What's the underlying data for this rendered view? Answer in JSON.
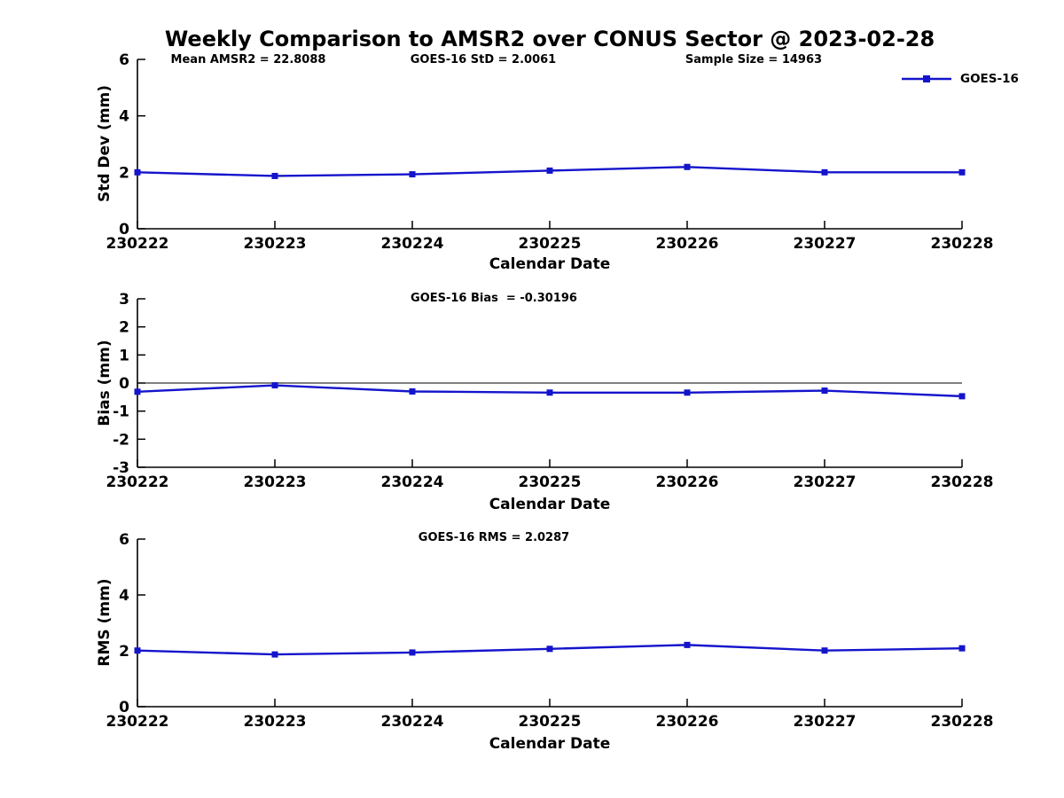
{
  "title": "Weekly Comparison to AMSR2 over CONUS Sector @ 2023-02-28",
  "legend": {
    "label": "GOES-16",
    "color": "#1414cc",
    "marker": "square",
    "position": "top-right"
  },
  "axis_color": "#000000",
  "chart_data": [
    {
      "type": "line",
      "name": "std-dev",
      "ylabel": "Std Dev (mm)",
      "xlabel": "Calendar Date",
      "ylim": [
        0,
        6
      ],
      "yticks": [
        0,
        2,
        4,
        6
      ],
      "grid": false,
      "categories": [
        "230222",
        "230223",
        "230224",
        "230225",
        "230226",
        "230227",
        "230228"
      ],
      "series": [
        {
          "name": "GOES-16",
          "color": "#1414cc",
          "marker": "square",
          "values": [
            2.0,
            1.87,
            1.93,
            2.06,
            2.19,
            2.0,
            2.0
          ]
        }
      ],
      "annotations": [
        "Mean AMSR2 = 22.8088",
        "GOES-16 StD = 2.0061",
        "Sample Size = 14963"
      ]
    },
    {
      "type": "line",
      "name": "bias",
      "ylabel": "Bias (mm)",
      "xlabel": "Calendar Date",
      "ylim": [
        -3,
        3
      ],
      "yticks": [
        -3,
        -2,
        -1,
        0,
        1,
        2,
        3
      ],
      "zero_line": true,
      "grid": false,
      "categories": [
        "230222",
        "230223",
        "230224",
        "230225",
        "230226",
        "230227",
        "230228"
      ],
      "series": [
        {
          "name": "GOES-16",
          "color": "#1414cc",
          "marker": "square",
          "values": [
            -0.31,
            -0.08,
            -0.3,
            -0.34,
            -0.34,
            -0.27,
            -0.47
          ]
        }
      ],
      "annotations": [
        "GOES-16 Bias  = -0.30196"
      ]
    },
    {
      "type": "line",
      "name": "rms",
      "ylabel": "RMS (mm)",
      "xlabel": "Calendar Date",
      "ylim": [
        0,
        6
      ],
      "yticks": [
        0,
        2,
        4,
        6
      ],
      "grid": false,
      "categories": [
        "230222",
        "230223",
        "230224",
        "230225",
        "230226",
        "230227",
        "230228"
      ],
      "series": [
        {
          "name": "GOES-16",
          "color": "#1414cc",
          "marker": "square",
          "values": [
            2.01,
            1.87,
            1.94,
            2.07,
            2.21,
            2.01,
            2.09
          ]
        }
      ],
      "annotations": [
        "GOES-16 RMS = 2.0287"
      ]
    }
  ]
}
